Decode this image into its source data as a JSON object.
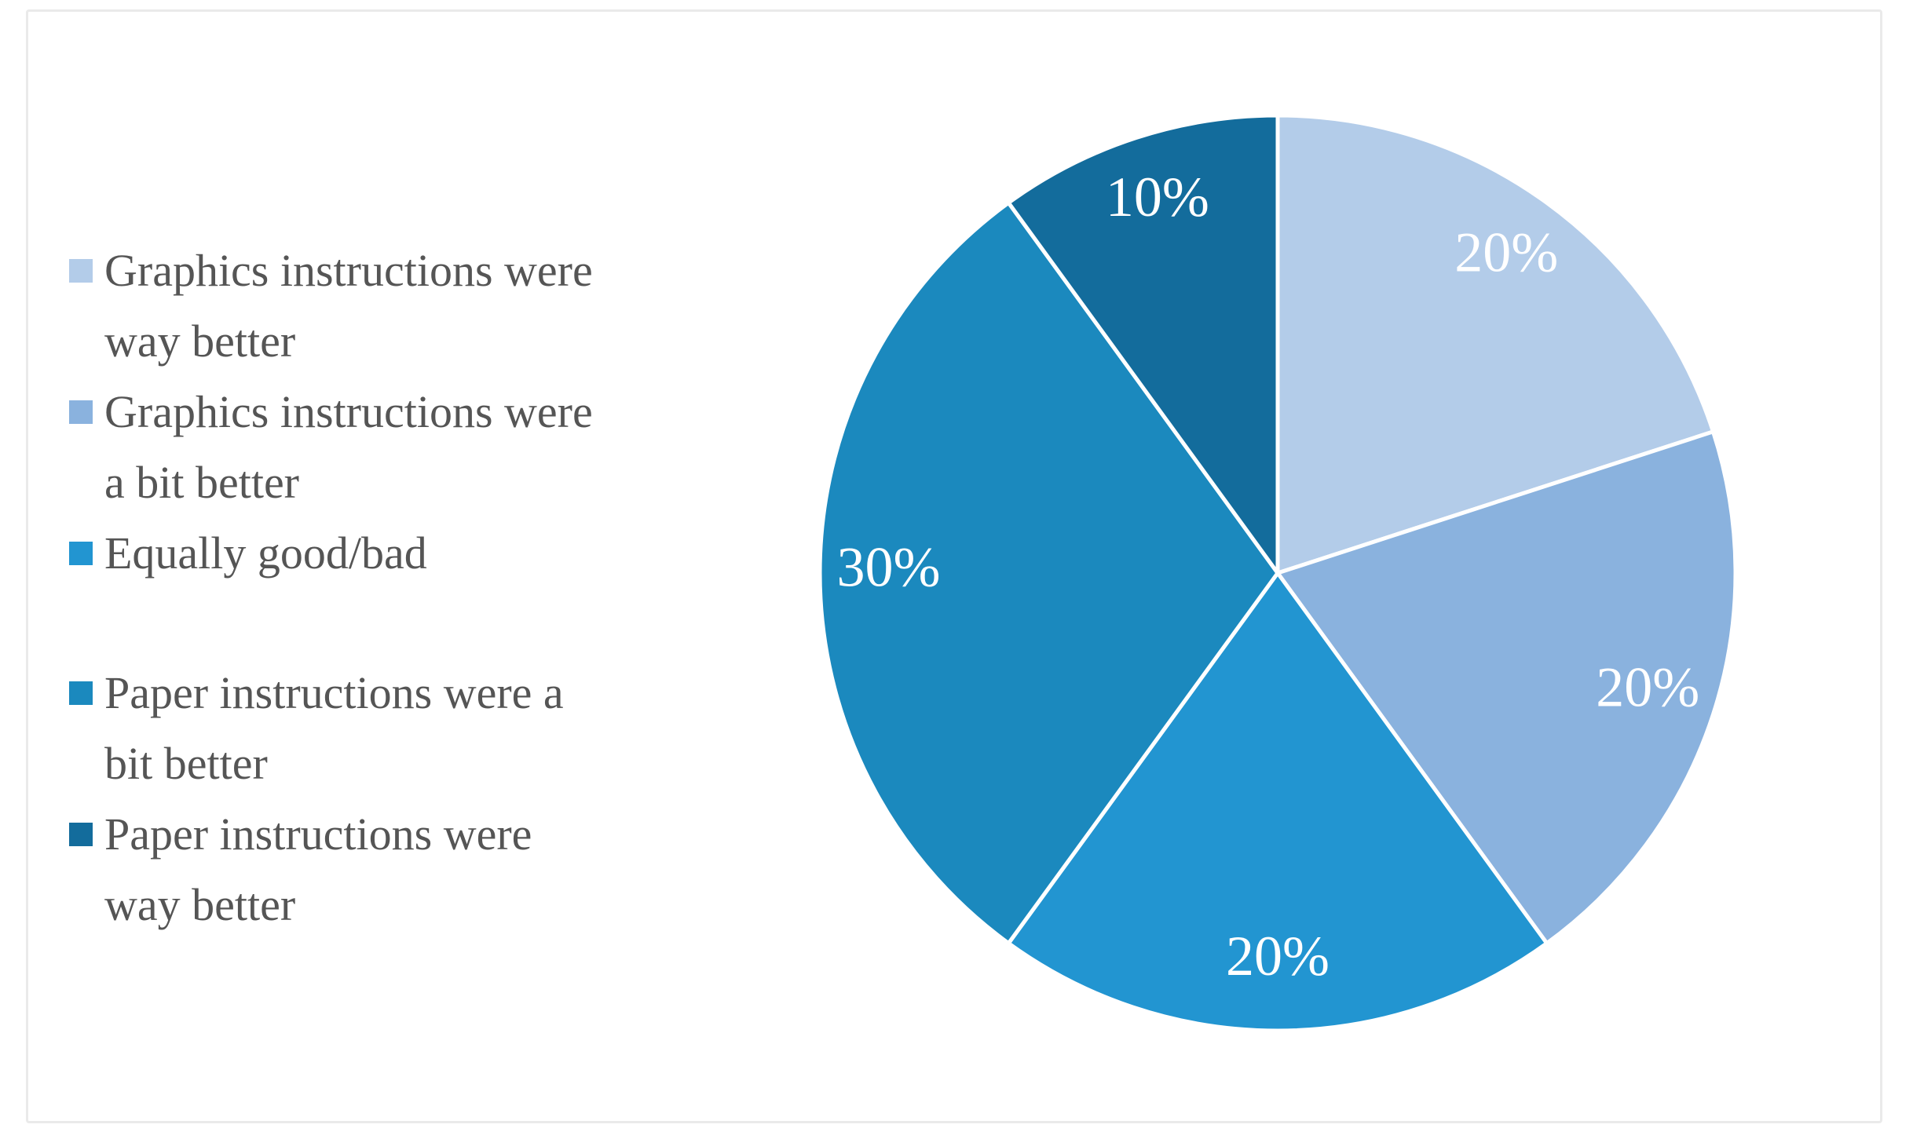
{
  "figure": {
    "background": "#FFFFFF",
    "frame_border_color": "#EAEAEA"
  },
  "chart_data": {
    "type": "pie",
    "title": "",
    "start_angle_deg": 0,
    "direction": "clockwise",
    "slice_border_color": "#FFFFFF",
    "label_color": "#FFFFFF",
    "label_radius_ratio": 0.85,
    "legend_position": "left",
    "legend_text_color": "#555555",
    "categories": [
      "Graphics instructions were way better",
      "Graphics instructions were a bit better",
      "Equally good/bad",
      "Paper instructions were a bit better",
      "Paper instructions were way better"
    ],
    "values": [
      20,
      20,
      20,
      30,
      10
    ],
    "slices": [
      {
        "label": "Graphics instructions were way better",
        "value": 20,
        "label_text": "20%",
        "color": "#B3CCE9"
      },
      {
        "label": "Graphics instructions were a bit better",
        "value": 20,
        "label_text": "20%",
        "color": "#8AB2DE"
      },
      {
        "label": "Equally good/bad",
        "value": 20,
        "label_text": "20%",
        "color": "#2295D1"
      },
      {
        "label": "Paper instructions were a bit better",
        "value": 30,
        "label_text": "30%",
        "color": "#1B89BE"
      },
      {
        "label": "Paper instructions were way better",
        "value": 10,
        "label_text": "10%",
        "color": "#136C9C"
      }
    ]
  }
}
